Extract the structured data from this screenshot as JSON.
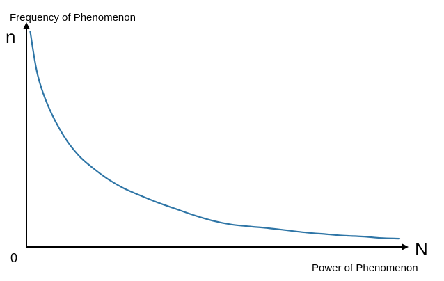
{
  "chart_data": {
    "type": "line",
    "title": "",
    "ylabel": "Frequency of Phenomenon",
    "xlabel": "Power of Phenomenon",
    "y_axis_symbol": "n",
    "x_axis_symbol": "N",
    "origin_label": "0",
    "xlim": [
      0,
      100
    ],
    "ylim": [
      0,
      100
    ],
    "grid": false,
    "legend": "none",
    "colors": {
      "curve": "#2e75a6",
      "axis": "#000000"
    },
    "series": [
      {
        "x": [
          1,
          3,
          6,
          10,
          14,
          18,
          22,
          26,
          30,
          35,
          40,
          45,
          50,
          55,
          60,
          65,
          70,
          75,
          80,
          85,
          90,
          95,
          100
        ],
        "y": [
          99,
          79,
          64,
          51,
          42,
          36,
          31,
          27,
          24,
          20.5,
          17.5,
          14.5,
          12,
          10.3,
          9.4,
          8.6,
          7.6,
          6.6,
          5.9,
          5.2,
          4.8,
          4.1,
          3.8
        ]
      }
    ]
  }
}
